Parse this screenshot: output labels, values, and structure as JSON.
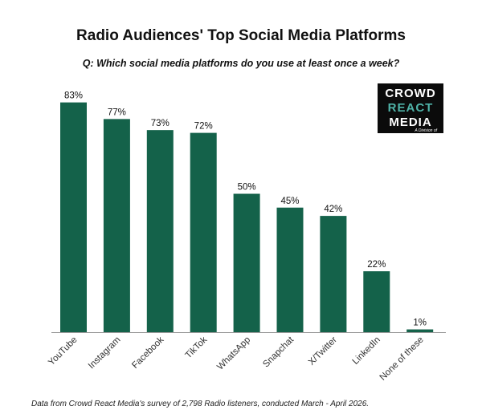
{
  "chart_data": {
    "type": "bar",
    "title": "Radio Audiences' Top Social Media Platforms",
    "subtitle": "Q: Which social media platforms do you use at least once a week?",
    "categories": [
      "YouTube",
      "Instagram",
      "Facebook",
      "TikTok",
      "WhatsApp",
      "Snapchat",
      "X/Twitter",
      "LinkedIn",
      "None of these"
    ],
    "values": [
      83,
      77,
      73,
      72,
      50,
      45,
      42,
      22,
      1
    ],
    "data_labels": [
      "83%",
      "77%",
      "73%",
      "72%",
      "50%",
      "45%",
      "42%",
      "22%",
      "1%"
    ],
    "xlabel": "",
    "ylabel": "",
    "ylim": [
      0,
      90
    ],
    "grid": false,
    "bar_color": "#14624a",
    "footnote": "Data from Crowd React Media's survey of 2,798 Radio listeners, conducted March - April 2026."
  },
  "logo": {
    "line1": "CROWD",
    "line2": "REACT",
    "line3": "MEDIA",
    "tagline": "A Division of"
  }
}
